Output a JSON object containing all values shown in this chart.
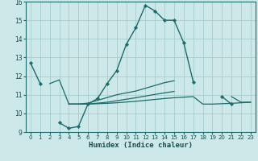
{
  "xlabel": "Humidex (Indice chaleur)",
  "xlim": [
    -0.5,
    23.5
  ],
  "ylim": [
    9,
    16
  ],
  "yticks": [
    9,
    10,
    11,
    12,
    13,
    14,
    15,
    16
  ],
  "xticks": [
    0,
    1,
    2,
    3,
    4,
    5,
    6,
    7,
    8,
    9,
    10,
    11,
    12,
    13,
    14,
    15,
    16,
    17,
    18,
    19,
    20,
    21,
    22,
    23
  ],
  "bg_color": "#cde8e8",
  "grid_color": "#9ec8c8",
  "line_color": "#1a6b6b",
  "y_main": [
    12.7,
    11.6,
    null,
    9.5,
    9.2,
    9.3,
    10.5,
    10.8,
    11.6,
    12.3,
    13.7,
    14.6,
    15.8,
    15.5,
    15.0,
    15.0,
    13.8,
    11.7,
    null,
    null,
    10.9,
    10.5,
    null,
    null
  ],
  "y_line2": [
    null,
    null,
    11.6,
    11.8,
    10.5,
    10.5,
    10.55,
    10.7,
    10.85,
    11.0,
    11.1,
    11.2,
    11.35,
    11.5,
    11.65,
    11.75,
    null,
    null,
    null,
    null,
    null,
    10.9,
    10.6,
    10.6
  ],
  "y_line3": [
    null,
    null,
    null,
    null,
    10.5,
    10.5,
    10.5,
    10.55,
    10.6,
    10.68,
    10.76,
    10.84,
    10.93,
    11.02,
    11.1,
    11.18,
    null,
    null,
    null,
    null,
    null,
    null,
    null,
    null
  ],
  "y_line4": [
    null,
    null,
    null,
    null,
    10.5,
    10.5,
    10.5,
    10.52,
    10.54,
    10.57,
    10.61,
    10.65,
    10.7,
    10.75,
    10.8,
    10.84,
    10.87,
    10.9,
    10.5,
    10.5,
    10.52,
    10.54,
    10.57,
    10.6
  ]
}
